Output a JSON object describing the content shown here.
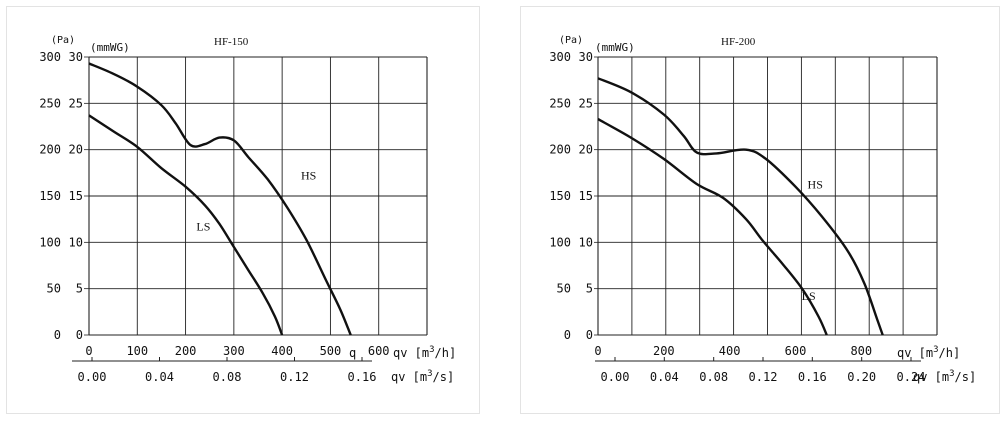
{
  "chart_data": [
    {
      "type": "line",
      "title": "HF-150",
      "pa_unit_label": "(Pa)",
      "mm_unit_label": "(mmWG)",
      "pa_ticks": [
        "0",
        "50",
        "100",
        "150",
        "200",
        "250",
        "300"
      ],
      "mm_ticks": [
        "0",
        "5",
        "10",
        "15",
        "20",
        "25",
        "30"
      ],
      "x_ticks": [
        "0",
        "100",
        "200",
        "300",
        "400",
        "500",
        "600"
      ],
      "x_label": "qv [m3/h]",
      "q_label": "q",
      "x2_ticks": [
        "0.00",
        "0.04",
        "0.08",
        "0.12",
        "0.16"
      ],
      "x2_tick_pos": [
        0,
        68.75,
        137.5,
        206.25,
        275
      ],
      "x2_label": "qv [m3/s]",
      "xlim": [
        0,
        700
      ],
      "ylim": [
        0,
        300
      ],
      "series": [
        {
          "name": "HS",
          "label_at": [
            455,
            168
          ],
          "points": [
            [
              0,
              293
            ],
            [
              50,
              282
            ],
            [
              100,
              268
            ],
            [
              150,
              248
            ],
            [
              180,
              228
            ],
            [
              210,
              205
            ],
            [
              240,
              206
            ],
            [
              270,
              213
            ],
            [
              300,
              210
            ],
            [
              330,
              192
            ],
            [
              370,
              168
            ],
            [
              410,
              138
            ],
            [
              450,
              103
            ],
            [
              490,
              60
            ],
            [
              520,
              28
            ],
            [
              542,
              0
            ]
          ]
        },
        {
          "name": "LS",
          "label_at": [
            237,
            113
          ],
          "points": [
            [
              0,
              237
            ],
            [
              50,
              220
            ],
            [
              100,
              203
            ],
            [
              150,
              180
            ],
            [
              200,
              160
            ],
            [
              240,
              140
            ],
            [
              270,
              120
            ],
            [
              300,
              95
            ],
            [
              330,
              70
            ],
            [
              360,
              45
            ],
            [
              385,
              20
            ],
            [
              400,
              0
            ]
          ]
        }
      ]
    },
    {
      "type": "line",
      "title": "HF-200",
      "pa_unit_label": "(Pa)",
      "mm_unit_label": "(mmWG)",
      "pa_ticks": [
        "0",
        "50",
        "100",
        "150",
        "200",
        "250",
        "300"
      ],
      "mm_ticks": [
        "0",
        "5",
        "10",
        "15",
        "20",
        "25",
        "30"
      ],
      "x_ticks": [
        "0",
        "200",
        "400",
        "600",
        "800"
      ],
      "x_label": "qv [m3/h]",
      "q_label": "",
      "x2_ticks": [
        "0.00",
        "0.04",
        "0.08",
        "0.12",
        "0.16",
        "0.20",
        "0.24"
      ],
      "x2_tick_pos": [
        0,
        78.3,
        156.7,
        235,
        313.3,
        391.7,
        470
      ],
      "x2_label": "qv [m3/s]",
      "xlim": [
        0,
        1030
      ],
      "ylim": [
        0,
        300
      ],
      "series": [
        {
          "name": "HS",
          "label_at": [
            660,
            158
          ],
          "points": [
            [
              0,
              277
            ],
            [
              100,
              262
            ],
            [
              200,
              238
            ],
            [
              260,
              215
            ],
            [
              300,
              197
            ],
            [
              360,
              196
            ],
            [
              450,
              200
            ],
            [
              510,
              190
            ],
            [
              600,
              160
            ],
            [
              680,
              128
            ],
            [
              760,
              90
            ],
            [
              810,
              55
            ],
            [
              850,
              15
            ],
            [
              865,
              0
            ]
          ]
        },
        {
          "name": "LS",
          "label_at": [
            640,
            38
          ],
          "points": [
            [
              0,
              233
            ],
            [
              100,
              213
            ],
            [
              200,
              190
            ],
            [
              300,
              163
            ],
            [
              380,
              148
            ],
            [
              450,
              125
            ],
            [
              500,
              102
            ],
            [
              560,
              77
            ],
            [
              620,
              50
            ],
            [
              670,
              20
            ],
            [
              695,
              0
            ]
          ]
        }
      ]
    }
  ]
}
